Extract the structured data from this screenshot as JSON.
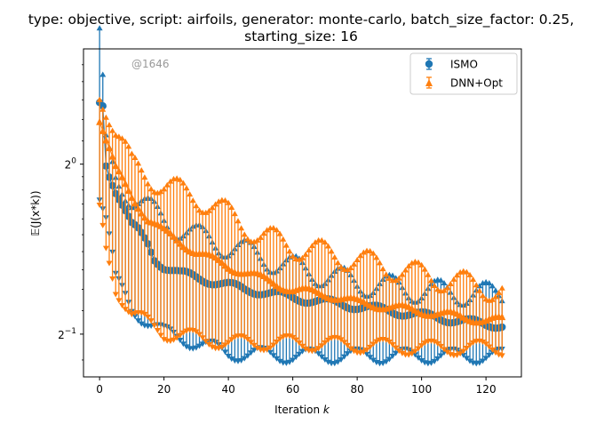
{
  "chart_data": {
    "type": "line",
    "title_line1": "type: objective, script: airfoils, generator: monte-carlo, batch_size_factor: 0.25,",
    "title_line2": "starting_size: 16",
    "xlabel_prefix": "Iteration ",
    "xlabel_var": "k",
    "ylabel": "𝔼(J(x*k))",
    "watermark": "@1646",
    "yscale": "log2",
    "xlim": [
      -5,
      131
    ],
    "ylim": [
      0.42,
      1.6
    ],
    "xticks": [
      0,
      20,
      40,
      60,
      80,
      100,
      120
    ],
    "yticks": [
      {
        "value": 1.0,
        "base": "2",
        "exp": "0"
      },
      {
        "value": 0.5,
        "base": "2",
        "exp": "−1"
      }
    ],
    "legend_position": "top-right",
    "grid": false,
    "series": [
      {
        "name": "ISMO",
        "color": "#1f77b4",
        "marker": "circle",
        "keypoints": [
          [
            0,
            1.28
          ],
          [
            1,
            1.27
          ],
          [
            2,
            1.0
          ],
          [
            3,
            0.96
          ],
          [
            5,
            0.9
          ],
          [
            10,
            0.78
          ],
          [
            12,
            0.76
          ],
          [
            15,
            0.72
          ],
          [
            17,
            0.68
          ],
          [
            20,
            0.66
          ],
          [
            25,
            0.64
          ],
          [
            30,
            0.63
          ],
          [
            35,
            0.62
          ],
          [
            40,
            0.61
          ],
          [
            45,
            0.6
          ],
          [
            50,
            0.595
          ],
          [
            60,
            0.58
          ],
          [
            70,
            0.57
          ],
          [
            80,
            0.56
          ],
          [
            90,
            0.55
          ],
          [
            100,
            0.54
          ],
          [
            110,
            0.53
          ],
          [
            120,
            0.52
          ],
          [
            125,
            0.52
          ]
        ],
        "upper_keypoints": [
          [
            0,
            1.68
          ],
          [
            2,
            1.08
          ],
          [
            5,
            0.95
          ],
          [
            10,
            0.88
          ],
          [
            20,
            0.8
          ],
          [
            30,
            0.75
          ],
          [
            40,
            0.72
          ],
          [
            60,
            0.66
          ],
          [
            80,
            0.62
          ],
          [
            100,
            0.6
          ],
          [
            125,
            0.59
          ]
        ],
        "lower_keypoints": [
          [
            0,
            0.88
          ],
          [
            2,
            0.8
          ],
          [
            5,
            0.62
          ],
          [
            10,
            0.55
          ],
          [
            20,
            0.5
          ],
          [
            30,
            0.48
          ],
          [
            40,
            0.46
          ],
          [
            60,
            0.455
          ],
          [
            80,
            0.455
          ],
          [
            100,
            0.455
          ],
          [
            125,
            0.455
          ]
        ]
      },
      {
        "name": "DNN+Opt",
        "color": "#ff7f0e",
        "marker": "triangle",
        "keypoints": [
          [
            0,
            1.2
          ],
          [
            2,
            1.1
          ],
          [
            5,
            0.98
          ],
          [
            10,
            0.88
          ],
          [
            15,
            0.8
          ],
          [
            20,
            0.76
          ],
          [
            30,
            0.7
          ],
          [
            40,
            0.66
          ],
          [
            50,
            0.63
          ],
          [
            60,
            0.6
          ],
          [
            70,
            0.59
          ],
          [
            80,
            0.57
          ],
          [
            90,
            0.56
          ],
          [
            100,
            0.55
          ],
          [
            110,
            0.54
          ],
          [
            120,
            0.53
          ],
          [
            125,
            0.53
          ]
        ],
        "upper_keypoints": [
          [
            0,
            1.35
          ],
          [
            2,
            1.28
          ],
          [
            5,
            1.15
          ],
          [
            10,
            1.0
          ],
          [
            20,
            0.92
          ],
          [
            30,
            0.88
          ],
          [
            40,
            0.82
          ],
          [
            50,
            0.75
          ],
          [
            60,
            0.72
          ],
          [
            80,
            0.68
          ],
          [
            100,
            0.64
          ],
          [
            125,
            0.6
          ]
        ],
        "lower_keypoints": [
          [
            0,
            0.82
          ],
          [
            2,
            0.7
          ],
          [
            5,
            0.6
          ],
          [
            10,
            0.54
          ],
          [
            20,
            0.5
          ],
          [
            30,
            0.49
          ],
          [
            40,
            0.48
          ],
          [
            60,
            0.48
          ],
          [
            80,
            0.475
          ],
          [
            100,
            0.47
          ],
          [
            125,
            0.47
          ]
        ]
      }
    ]
  }
}
